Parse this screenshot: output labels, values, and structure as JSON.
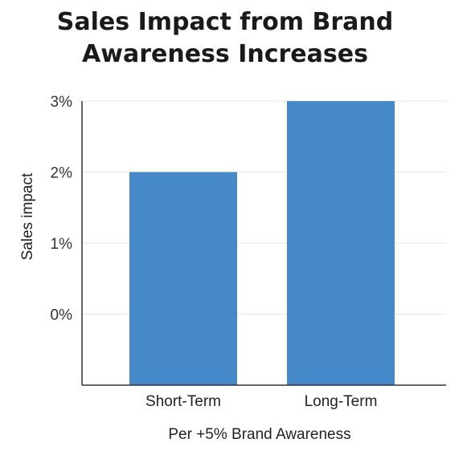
{
  "chart_data": {
    "type": "bar",
    "title": "Sales Impact from Brand Awareness Increases",
    "xlabel": "Per +5% Brand Awareness",
    "ylabel": "Sales impact",
    "categories": [
      "Short-Term",
      "Long-Term"
    ],
    "values": [
      2,
      3
    ],
    "y_tick_values": [
      0,
      1,
      2,
      3
    ],
    "y_tick_labels": [
      "0%",
      "1%",
      "2%",
      "3%"
    ],
    "ylim": [
      -1,
      3
    ],
    "grid": true,
    "legend": "none",
    "bar_color": "#4589c8",
    "grid_color": "#e6e6e6",
    "axis_color": "#333333"
  }
}
